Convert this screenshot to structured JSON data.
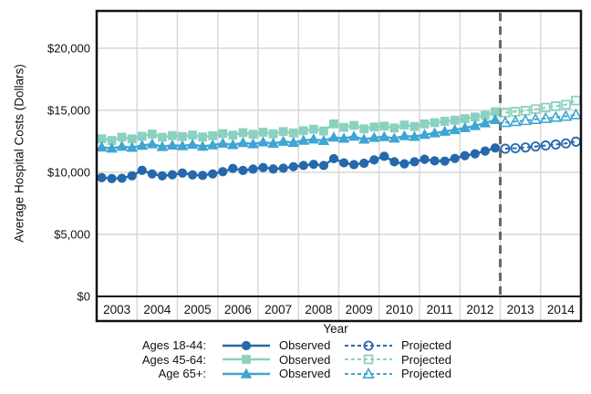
{
  "chart_data": {
    "type": "line",
    "title": "",
    "xlabel": "Year",
    "ylabel": "Average Hospital Costs (Dollars)",
    "x_tick_labels": [
      "2003",
      "2004",
      "2005",
      "2006",
      "2007",
      "2008",
      "2009",
      "2010",
      "2011",
      "2012",
      "2013",
      "2014"
    ],
    "x_range_years": [
      2003,
      2015
    ],
    "points_per_year": 4,
    "ylim": [
      0,
      23000
    ],
    "yticks": [
      {
        "value": 0,
        "label": "$0"
      },
      {
        "value": 5000,
        "label": "$5,000"
      },
      {
        "value": 10000,
        "label": "$10,000"
      },
      {
        "value": 15000,
        "label": "$15,000"
      },
      {
        "value": 20000,
        "label": "$20,000"
      }
    ],
    "grid": true,
    "legend_position": "bottom",
    "projection_divider": {
      "year": 2013,
      "style": "dashed",
      "color": "#686868"
    },
    "series": [
      {
        "name": "Ages 18-44",
        "legend_label": "Ages 18-44:",
        "marker": "circle",
        "color": "#2568ac",
        "observed": {
          "label": "Observed",
          "start": "2003Q1",
          "values": [
            9570,
            9500,
            9520,
            9720,
            10160,
            9870,
            9720,
            9800,
            9940,
            9790,
            9750,
            9870,
            10050,
            10310,
            10150,
            10260,
            10380,
            10270,
            10330,
            10450,
            10550,
            10640,
            10550,
            11100,
            10760,
            10620,
            10730,
            11000,
            11290,
            10850,
            10680,
            10850,
            11050,
            10920,
            10900,
            11120,
            11340,
            11490,
            11710,
            11960
          ]
        },
        "projected": {
          "label": "Projected",
          "start": "2013Q1",
          "values": [
            11900,
            11940,
            12000,
            12080,
            12160,
            12240,
            12330,
            12470
          ]
        }
      },
      {
        "name": "Ages 45-64",
        "legend_label": "Ages 45-64:",
        "marker": "square",
        "color": "#8bd1c0",
        "observed": {
          "label": "Observed",
          "start": "2003Q1",
          "values": [
            12700,
            12560,
            12830,
            12690,
            12900,
            13080,
            12820,
            12960,
            12880,
            13000,
            12840,
            12950,
            13120,
            12990,
            13190,
            13060,
            13230,
            13100,
            13280,
            13170,
            13350,
            13470,
            13330,
            13900,
            13620,
            13780,
            13500,
            13650,
            13720,
            13570,
            13810,
            13690,
            13900,
            14000,
            14110,
            14200,
            14320,
            14450,
            14590,
            14880
          ]
        },
        "projected": {
          "label": "Projected",
          "start": "2013Q1",
          "values": [
            14810,
            14880,
            14960,
            15090,
            15210,
            15320,
            15450,
            15780
          ]
        }
      },
      {
        "name": "Age 65+",
        "legend_label": "Age 65+:",
        "marker": "triangle",
        "color": "#3fa5d2",
        "observed": {
          "label": "Observed",
          "start": "2003Q1",
          "values": [
            12020,
            11930,
            12080,
            11990,
            12160,
            12280,
            12060,
            12180,
            12120,
            12240,
            12080,
            12190,
            12330,
            12210,
            12380,
            12280,
            12430,
            12320,
            12480,
            12400,
            12560,
            12660,
            12540,
            12820,
            12730,
            12890,
            12650,
            12790,
            12860,
            12740,
            12930,
            12870,
            13040,
            13160,
            13290,
            13420,
            13580,
            13750,
            13970,
            14230
          ]
        },
        "projected": {
          "label": "Projected",
          "start": "2013Q1",
          "values": [
            14010,
            14090,
            14170,
            14260,
            14340,
            14430,
            14510,
            14630
          ]
        }
      }
    ],
    "colors": {
      "grid": "#d8d8d8",
      "frame": "#111111",
      "zero_axis": "#111111",
      "background": "#ffffff"
    }
  }
}
